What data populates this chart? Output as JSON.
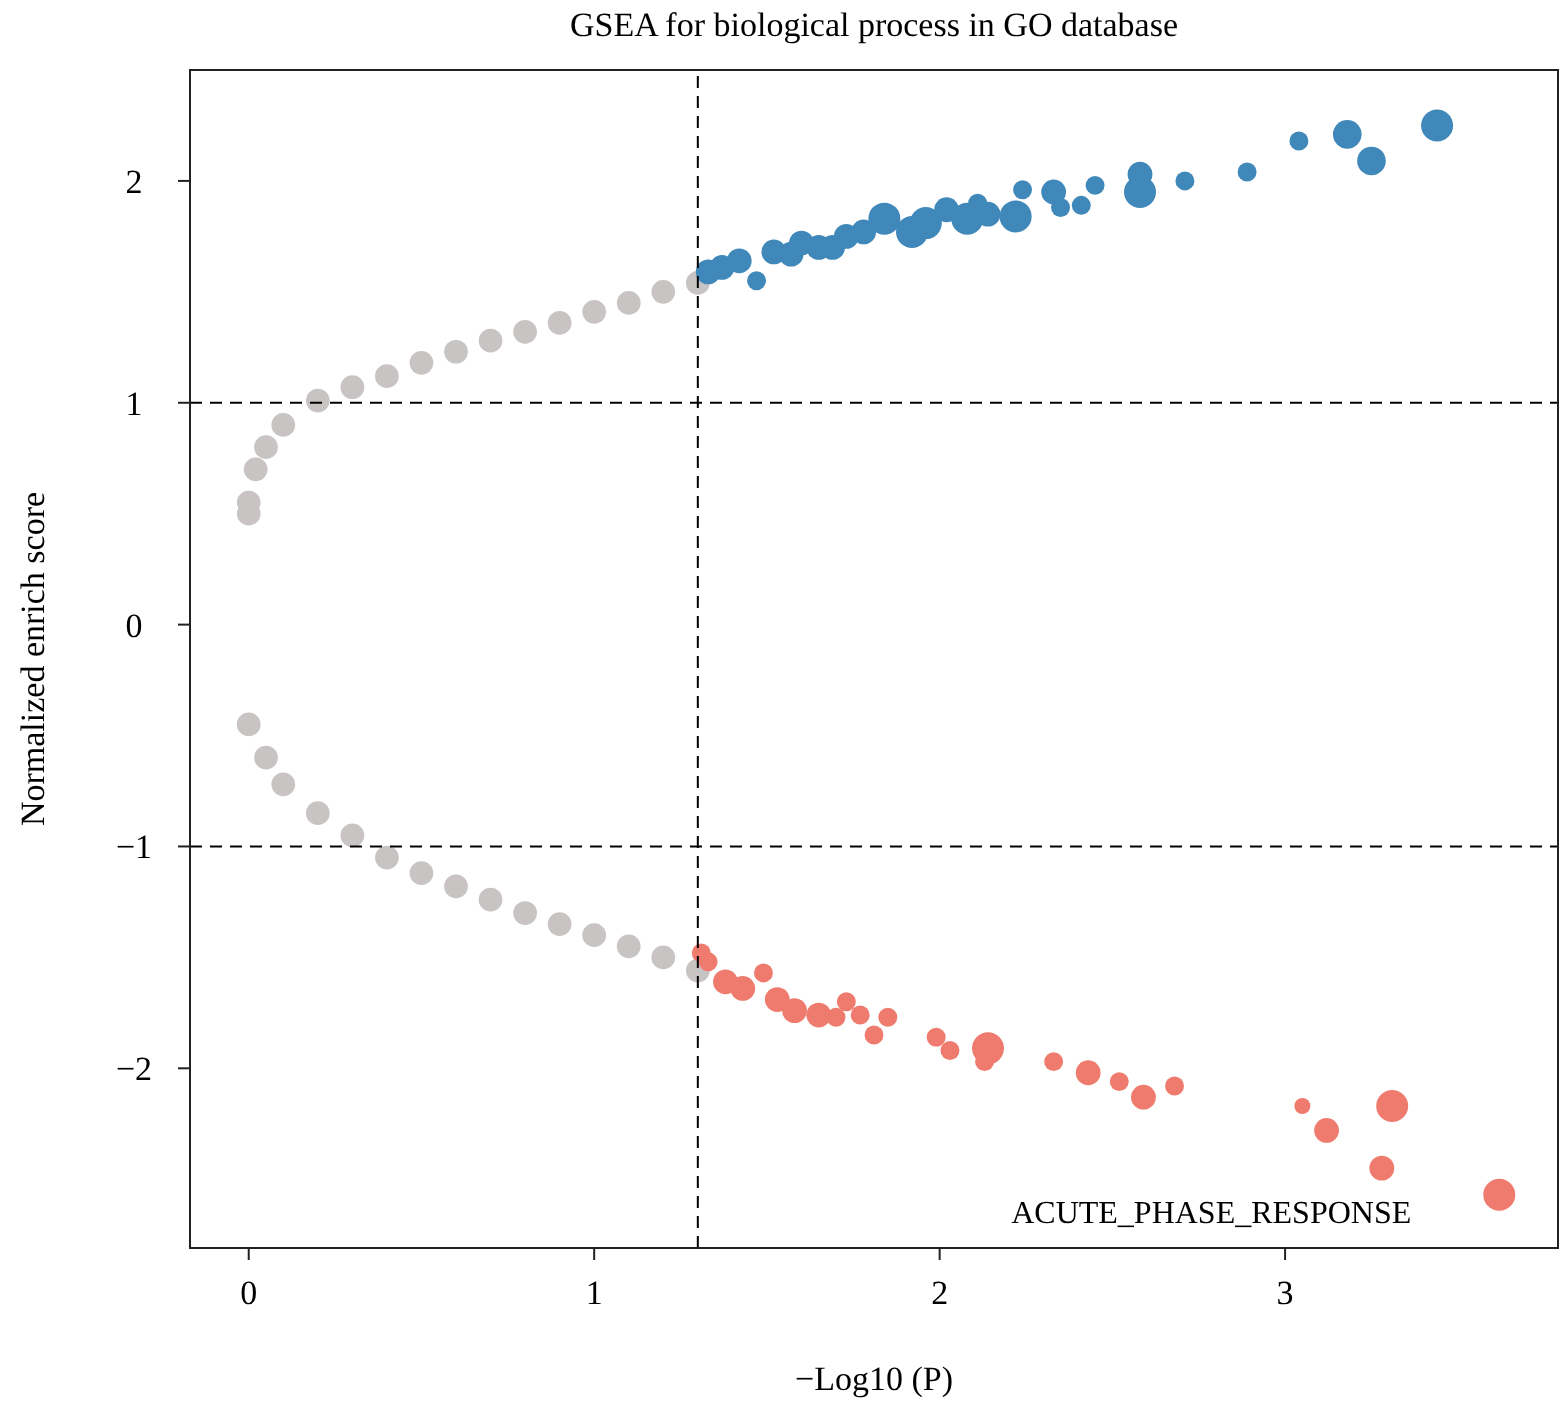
{
  "chart_data": {
    "type": "bubble",
    "title": "GSEA for biological process in GO database",
    "xlabel": "−Log10 (P)",
    "ylabel": "Normalized enrich score",
    "xlim": [
      -0.17,
      3.79
    ],
    "ylim": [
      -2.81,
      2.5
    ],
    "xticks": [
      0,
      1,
      2,
      3
    ],
    "yticks": [
      {
        "value": -2,
        "label": "−2"
      },
      {
        "value": -1,
        "label": "−1"
      },
      0,
      1,
      2
    ],
    "grid": false,
    "marker": "circle",
    "series": [
      {
        "color": "#c8c4c3",
        "x": [
          0,
          0,
          0.02,
          0.05,
          0.1,
          0.2,
          0.3,
          0.4,
          0.5,
          0.6,
          0.7,
          0.8,
          0.9,
          1.0,
          1.1,
          1.2,
          1.3,
          0,
          0.05,
          0.1,
          0.2,
          0.3,
          0.4,
          0.5,
          0.6,
          0.7,
          0.8,
          0.9,
          1.0,
          1.1,
          1.2,
          1.3
        ],
        "values": [
          0.5,
          0.55,
          0.7,
          0.8,
          0.9,
          1.01,
          1.07,
          1.12,
          1.18,
          1.23,
          1.28,
          1.32,
          1.36,
          1.41,
          1.45,
          1.5,
          1.54,
          -0.45,
          -0.6,
          -0.72,
          -0.85,
          -0.95,
          -1.05,
          -1.12,
          -1.18,
          -1.24,
          -1.3,
          -1.35,
          -1.4,
          -1.45,
          -1.5,
          -1.56
        ],
        "sizes": [
          0.55,
          0.55,
          0.55,
          0.55,
          0.55,
          0.55,
          0.55,
          0.55,
          0.55,
          0.55,
          0.55,
          0.55,
          0.55,
          0.55,
          0.55,
          0.55,
          0.55,
          0.55,
          0.55,
          0.55,
          0.55,
          0.55,
          0.55,
          0.55,
          0.55,
          0.55,
          0.55,
          0.55,
          0.55,
          0.55,
          0.55,
          0.55
        ]
      },
      {
        "color": "#3f88b9",
        "x": [
          1.33,
          1.37,
          1.42,
          1.47,
          1.52,
          1.57,
          1.6,
          1.65,
          1.69,
          1.73,
          1.78,
          1.84,
          1.92,
          1.96,
          2.02,
          2.08,
          2.11,
          2.14,
          2.22,
          2.24,
          2.33,
          2.35,
          2.41,
          2.45,
          2.58,
          2.58,
          2.71,
          2.89,
          3.04,
          3.18,
          3.25,
          3.44
        ],
        "values": [
          1.59,
          1.61,
          1.64,
          1.55,
          1.68,
          1.67,
          1.72,
          1.7,
          1.7,
          1.75,
          1.77,
          1.83,
          1.77,
          1.81,
          1.87,
          1.83,
          1.9,
          1.85,
          1.84,
          1.96,
          1.95,
          1.88,
          1.89,
          1.98,
          1.95,
          2.03,
          2.0,
          2.04,
          2.18,
          2.21,
          2.09,
          2.25
        ],
        "sizes": [
          0.6,
          0.6,
          0.6,
          0.35,
          0.6,
          0.6,
          0.6,
          0.6,
          0.6,
          0.6,
          0.6,
          1,
          1,
          1,
          0.6,
          1,
          0.35,
          0.6,
          1,
          0.35,
          0.6,
          0.35,
          0.35,
          0.35,
          1,
          0.6,
          0.35,
          0.35,
          0.35,
          0.8,
          0.8,
          1
        ]
      },
      {
        "color": "#ee7b6e",
        "x": [
          1.31,
          1.33,
          1.38,
          1.43,
          1.49,
          1.53,
          1.58,
          1.65,
          1.7,
          1.73,
          1.77,
          1.81,
          1.85,
          1.99,
          2.03,
          2.13,
          2.14,
          2.33,
          2.43,
          2.52,
          2.59,
          2.68,
          3.05,
          3.12,
          3.28,
          3.31,
          3.62
        ],
        "values": [
          -1.48,
          -1.52,
          -1.61,
          -1.64,
          -1.57,
          -1.69,
          -1.74,
          -1.76,
          -1.77,
          -1.7,
          -1.76,
          -1.85,
          -1.77,
          -1.86,
          -1.92,
          -1.97,
          -1.91,
          -1.97,
          -2.02,
          -2.06,
          -2.13,
          -2.08,
          -2.17,
          -2.28,
          -2.45,
          -2.17,
          -2.57
        ],
        "sizes": [
          0.35,
          0.35,
          0.6,
          0.6,
          0.35,
          0.6,
          0.6,
          0.6,
          0.35,
          0.35,
          0.35,
          0.35,
          0.35,
          0.35,
          0.35,
          0.35,
          1,
          0.35,
          0.6,
          0.35,
          0.6,
          0.35,
          0.25,
          0.6,
          0.6,
          1,
          1
        ]
      }
    ],
    "ref_lines": [
      {
        "axis": "x",
        "value": 1.3,
        "line_style": "dashed"
      },
      {
        "axis": "y",
        "value": 1,
        "line_style": "dashed"
      },
      {
        "axis": "y",
        "value": -1,
        "line_style": "dashed"
      }
    ],
    "annotations": [
      {
        "text": "ACUTE_PHASE_RESPONSE",
        "x": 3.62,
        "y": -2.57
      }
    ]
  }
}
